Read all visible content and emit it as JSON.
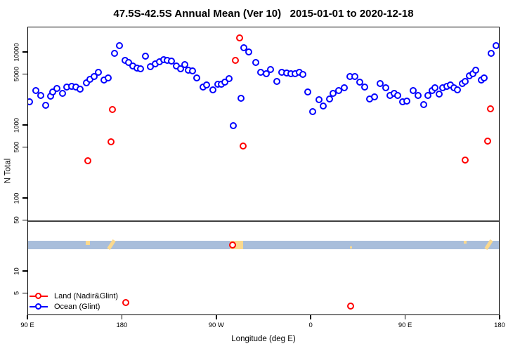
{
  "chart_data": {
    "type": "scatter",
    "title": "47.5S-42.5S Annual Mean (Ver 10)   2015-01-01 to 2020-12-18",
    "xlabel": "Longitude (deg E)",
    "ylabel": "N Total",
    "x_axis": {
      "span_deg": 450,
      "note": "longitude axis starts at 90E and wraps eastward 450 degrees to 180",
      "ticks": [
        {
          "t": 0,
          "label": "90 E"
        },
        {
          "t": 90,
          "label": "180"
        },
        {
          "t": 180,
          "label": "90 W"
        },
        {
          "t": 270,
          "label": "0"
        },
        {
          "t": 360,
          "label": "90 E"
        },
        {
          "t": 450,
          "label": "180"
        }
      ]
    },
    "y_axis": {
      "scale": "log10",
      "ticks": [
        5,
        10,
        50,
        100,
        500,
        1000,
        5000,
        10000
      ],
      "range": [
        2.5,
        22000
      ]
    },
    "reference_line": {
      "value": 50,
      "color": "#3F3F3F"
    },
    "map_band": {
      "description": "ocean/land map strip of the 47.5S-42.5S latitude band",
      "n_top": 26.5,
      "n_bottom": 20.3,
      "ocean_color": "#A9BEDB",
      "land_color": "#FBD98D",
      "land_patches": [
        {
          "t0": 55,
          "t1": 59,
          "part": "top-half"
        },
        {
          "t0": 76,
          "t1": 83,
          "part": "slash"
        },
        {
          "t0": 192,
          "t1": 205,
          "part": "full"
        },
        {
          "t0": 306.7,
          "t1": 308.7,
          "part": "bottom-dot"
        },
        {
          "t0": 415.1,
          "t1": 417.8,
          "part": "top-dot"
        },
        {
          "t0": 435.2,
          "t1": 442.6,
          "part": "slash"
        }
      ]
    },
    "series": [
      {
        "name": "Ocean (Glint)",
        "color": "#0000FF",
        "marker": "open-circle",
        "points": [
          [
            1.8,
            2110
          ],
          [
            7.8,
            2960
          ],
          [
            12.5,
            2535
          ],
          [
            16.9,
            1860
          ],
          [
            21.9,
            2495
          ],
          [
            24.1,
            2830
          ],
          [
            27.9,
            3215
          ],
          [
            33,
            2750
          ],
          [
            37.5,
            3300
          ],
          [
            42,
            3400
          ],
          [
            46,
            3300
          ],
          [
            50.2,
            3110
          ],
          [
            55.8,
            3800
          ],
          [
            59.4,
            4290
          ],
          [
            63.4,
            4680
          ],
          [
            67.6,
            5300
          ],
          [
            72.5,
            4120
          ],
          [
            76.6,
            4440
          ],
          [
            82.8,
            9630
          ],
          [
            87.3,
            12400
          ],
          [
            92.7,
            7750
          ],
          [
            96.4,
            7180
          ],
          [
            100.4,
            6430
          ],
          [
            104.5,
            6010
          ],
          [
            107.8,
            5940
          ],
          [
            112.3,
            8810
          ],
          [
            117.2,
            6350
          ],
          [
            121.7,
            6900
          ],
          [
            125.7,
            7450
          ],
          [
            129.7,
            7840
          ],
          [
            132.8,
            7670
          ],
          [
            136.8,
            7550
          ],
          [
            141.7,
            6530
          ],
          [
            145.8,
            5920
          ],
          [
            149.8,
            6760
          ],
          [
            152.9,
            5710
          ],
          [
            157.4,
            5530
          ],
          [
            161.4,
            4440
          ],
          [
            166.9,
            3300
          ],
          [
            170.8,
            3560
          ],
          [
            176.6,
            3070
          ],
          [
            181,
            3615
          ],
          [
            184.8,
            3670
          ],
          [
            188.2,
            3890
          ],
          [
            192.2,
            4345
          ],
          [
            196,
            995
          ],
          [
            203.4,
            2355
          ],
          [
            206,
            11500
          ],
          [
            210.9,
            10160
          ],
          [
            217.2,
            7280
          ],
          [
            222.1,
            5345
          ],
          [
            227.2,
            5030
          ],
          [
            231.2,
            5750
          ],
          [
            237.3,
            3970
          ],
          [
            242.2,
            5345
          ],
          [
            246.6,
            5225
          ],
          [
            250.7,
            5030
          ],
          [
            254.7,
            5120
          ],
          [
            259.2,
            5345
          ],
          [
            262.3,
            4955
          ],
          [
            267,
            2830
          ],
          [
            271.9,
            1545
          ],
          [
            277.4,
            2235
          ],
          [
            281.9,
            1820
          ],
          [
            287.5,
            2270
          ],
          [
            291.3,
            2755
          ],
          [
            296.4,
            3005
          ],
          [
            302,
            3290
          ],
          [
            306.9,
            4600
          ],
          [
            312.1,
            4680
          ],
          [
            316.6,
            3890
          ],
          [
            321,
            3360
          ],
          [
            326.1,
            2270
          ],
          [
            330.6,
            2445
          ],
          [
            336,
            3690
          ],
          [
            341.1,
            3240
          ],
          [
            345.6,
            2555
          ],
          [
            349.6,
            2755
          ],
          [
            352.7,
            2555
          ],
          [
            357.2,
            2110
          ],
          [
            361.2,
            2160
          ],
          [
            367.4,
            2960
          ],
          [
            371.9,
            2555
          ],
          [
            377.2,
            1900
          ],
          [
            381.7,
            2555
          ],
          [
            385.7,
            2960
          ],
          [
            388.4,
            3240
          ],
          [
            392.4,
            2690
          ],
          [
            395.8,
            3290
          ],
          [
            399.6,
            3435
          ],
          [
            403.1,
            3540
          ],
          [
            406.3,
            3290
          ],
          [
            409.8,
            3050
          ],
          [
            414.3,
            3690
          ],
          [
            417,
            3970
          ],
          [
            421,
            4745
          ],
          [
            424.1,
            5120
          ],
          [
            427,
            5620
          ],
          [
            432.1,
            4190
          ],
          [
            435.3,
            4405
          ],
          [
            442,
            9630
          ],
          [
            446.5,
            12400
          ]
        ]
      },
      {
        "name": "Land (Nadir&Glint)",
        "color": "#FF0000",
        "marker": "open-circle",
        "points": [
          [
            57.6,
            324
          ],
          [
            79.2,
            592
          ],
          [
            81,
            1630
          ],
          [
            93.3,
            3.7
          ],
          [
            195.3,
            23
          ],
          [
            198.2,
            7730
          ],
          [
            202,
            15700
          ],
          [
            205.4,
            522
          ],
          [
            307.6,
            3.3
          ],
          [
            417,
            333
          ],
          [
            438.1,
            601
          ],
          [
            441.1,
            1665
          ]
        ]
      }
    ],
    "legend": {
      "position": "bottom-left",
      "order": [
        "Land (Nadir&Glint)",
        "Ocean (Glint)"
      ]
    }
  }
}
